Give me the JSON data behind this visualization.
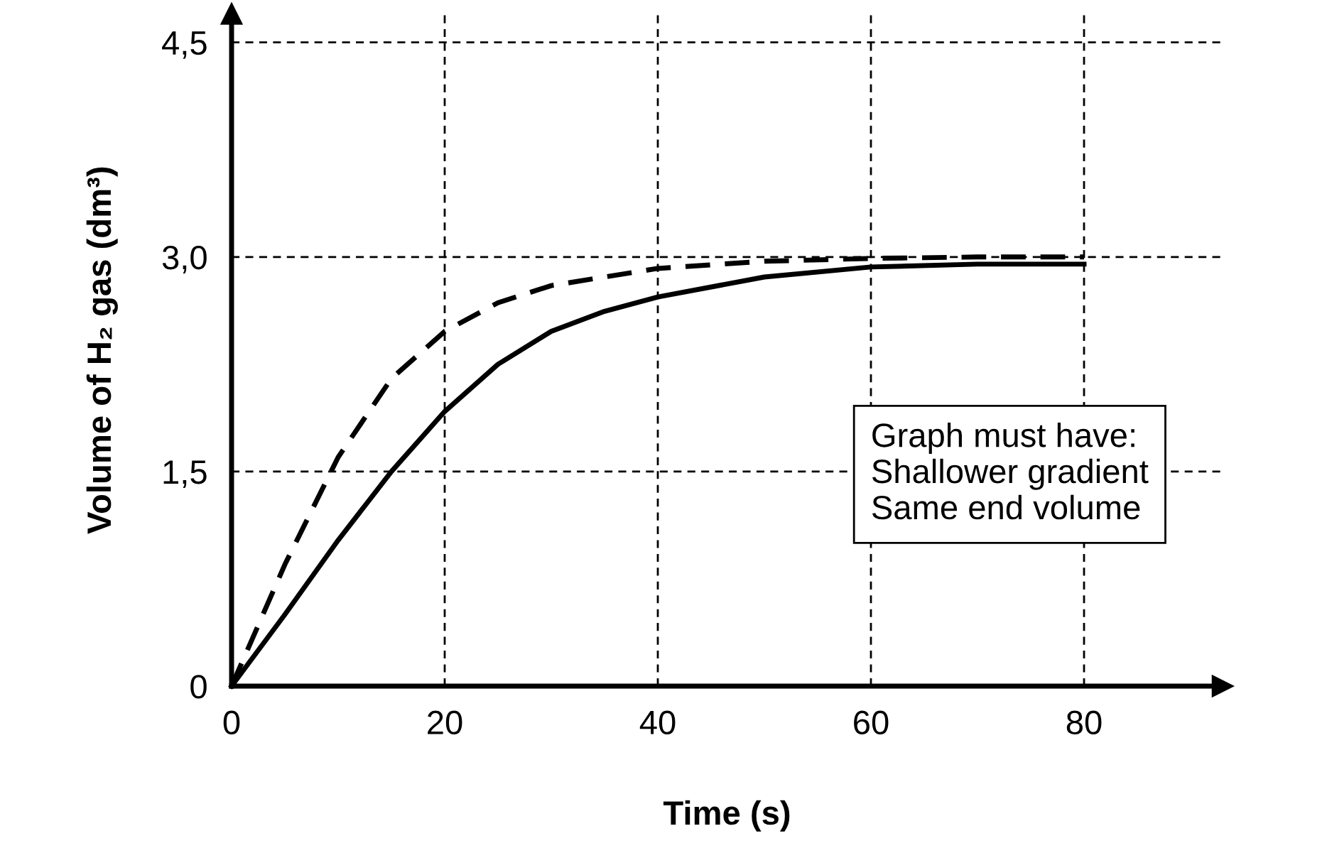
{
  "chart_data": {
    "type": "line",
    "xlabel": "Time (s)",
    "ylabel": "Volume of H₂ gas (dm³)",
    "xlim": [
      0,
      93
    ],
    "ylim": [
      0,
      4.7
    ],
    "xticks": [
      0,
      20,
      40,
      60,
      80
    ],
    "yticks": [
      0,
      {
        "value": 1.5,
        "label": "1,5"
      },
      {
        "value": 3,
        "label": "3,0"
      },
      {
        "value": 4.5,
        "label": "4,5"
      }
    ],
    "grid": true,
    "legend": false,
    "marker": "none",
    "series": [
      {
        "color": "#000000",
        "line_style": "dashed",
        "x": [
          0,
          5,
          10,
          15,
          20,
          25,
          30,
          40,
          50,
          60,
          70,
          80
        ],
        "values": [
          0,
          0.85,
          1.6,
          2.15,
          2.48,
          2.68,
          2.8,
          2.92,
          2.97,
          2.99,
          3.0,
          3.0
        ]
      },
      {
        "color": "#000000",
        "line_style": "solid",
        "x": [
          0,
          5,
          10,
          15,
          20,
          25,
          30,
          35,
          40,
          50,
          60,
          70,
          80
        ],
        "values": [
          0,
          0.5,
          1.02,
          1.5,
          1.92,
          2.25,
          2.48,
          2.62,
          2.72,
          2.86,
          2.93,
          2.95,
          2.95
        ]
      }
    ],
    "annotations": [
      "Graph must have:\nShallower gradient\nSame end volume"
    ]
  }
}
